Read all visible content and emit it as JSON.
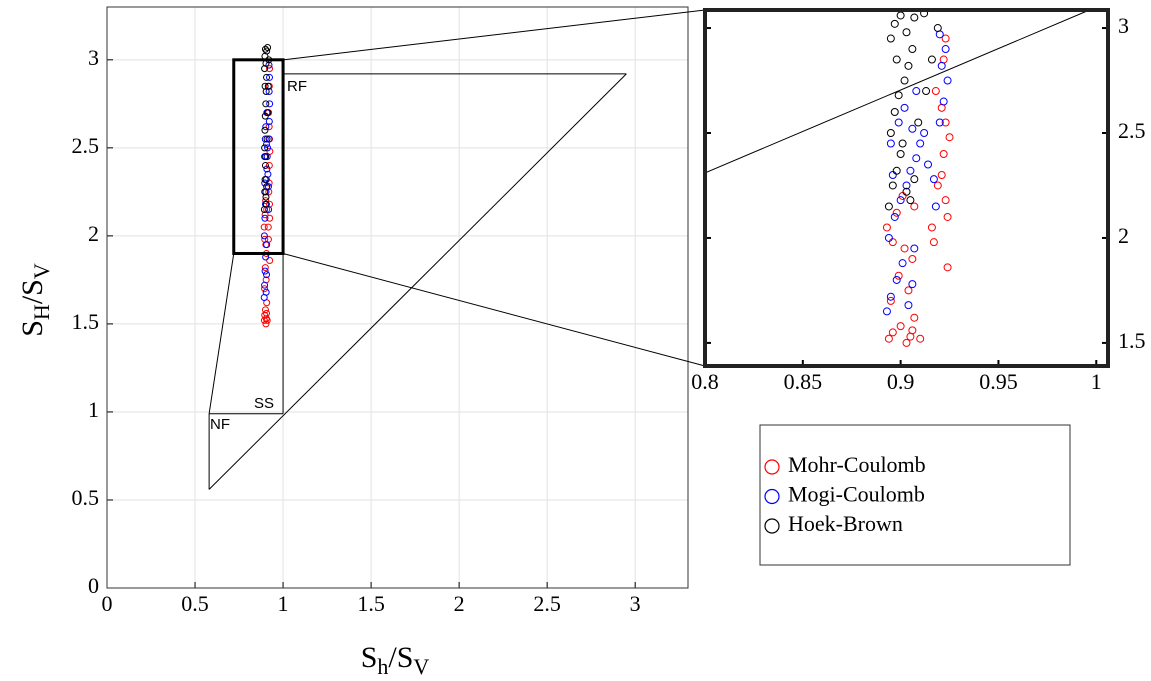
{
  "chart_data": {
    "type": "scatter",
    "xlabel": [
      "S",
      "h",
      "/S",
      "V"
    ],
    "ylabel": [
      "S",
      "H",
      "/S",
      "V"
    ],
    "xlim": [
      0,
      3.3
    ],
    "ylim": [
      0,
      3.3
    ],
    "xticks": [
      0,
      0.5,
      1,
      1.5,
      2,
      2.5,
      3
    ],
    "yticks": [
      0,
      0.5,
      1,
      1.5,
      2,
      2.5,
      3
    ],
    "grid": true,
    "annotations": [
      "RF",
      "SS",
      "NF"
    ],
    "boundaries": [
      {
        "x": [
          0.58,
          0.58
        ],
        "y": [
          0.56,
          0.99
        ]
      },
      {
        "x": [
          0.58,
          1.0
        ],
        "y": [
          0.99,
          0.99
        ]
      },
      {
        "x": [
          1.0,
          1.0
        ],
        "y": [
          0.99,
          2.92
        ]
      },
      {
        "x": [
          1.0,
          2.95
        ],
        "y": [
          2.92,
          2.92
        ]
      },
      {
        "x": [
          0.58,
          2.95
        ],
        "y": [
          0.56,
          2.92
        ]
      },
      {
        "x": [
          0.58,
          0.72
        ],
        "y": [
          0.99,
          1.9
        ]
      }
    ],
    "zoom_box": {
      "x": [
        0.72,
        1.0
      ],
      "y": [
        1.9,
        3.0
      ]
    },
    "series": [
      {
        "name": "Mohr-Coulomb",
        "color": "#ff0000",
        "x": [
          0.894,
          0.896,
          0.9,
          0.903,
          0.905,
          0.906,
          0.907,
          0.91,
          0.895,
          0.899,
          0.902,
          0.896,
          0.904,
          0.906,
          0.893,
          0.898,
          0.901,
          0.907,
          0.916,
          0.917,
          0.919,
          0.921,
          0.923,
          0.924,
          0.922,
          0.925,
          0.923,
          0.921,
          0.918,
          0.922,
          0.924,
          0.923
        ],
        "values": [
          1.52,
          1.55,
          1.58,
          1.5,
          1.53,
          1.56,
          1.62,
          1.52,
          1.7,
          1.82,
          1.95,
          1.98,
          1.75,
          1.9,
          2.05,
          2.12,
          2.2,
          2.15,
          2.05,
          1.98,
          2.25,
          2.3,
          2.18,
          2.1,
          2.4,
          2.48,
          2.55,
          2.62,
          2.7,
          2.85,
          1.86,
          2.95
        ]
      },
      {
        "name": "Mogi-Coulomb",
        "color": "#0000ff",
        "x": [
          0.893,
          0.895,
          0.898,
          0.901,
          0.904,
          0.906,
          0.907,
          0.894,
          0.897,
          0.9,
          0.903,
          0.905,
          0.908,
          0.895,
          0.899,
          0.902,
          0.906,
          0.91,
          0.914,
          0.917,
          0.918,
          0.92,
          0.922,
          0.924,
          0.921,
          0.923,
          0.92,
          0.908,
          0.896,
          0.912
        ],
        "values": [
          1.65,
          1.72,
          1.8,
          1.88,
          1.68,
          1.78,
          1.95,
          2.0,
          2.1,
          2.18,
          2.25,
          2.32,
          2.38,
          2.45,
          2.55,
          2.62,
          2.52,
          2.45,
          2.35,
          2.28,
          2.15,
          2.55,
          2.65,
          2.75,
          2.82,
          2.9,
          2.97,
          2.7,
          2.3,
          2.5
        ]
      },
      {
        "name": "Hoek-Brown",
        "color": "#000000",
        "x": [
          0.894,
          0.896,
          0.898,
          0.9,
          0.903,
          0.905,
          0.907,
          0.895,
          0.897,
          0.899,
          0.902,
          0.904,
          0.906,
          0.895,
          0.897,
          0.9,
          0.903,
          0.907,
          0.912,
          0.916,
          0.913,
          0.919,
          0.909,
          0.901,
          0.898
        ],
        "values": [
          2.15,
          2.25,
          2.32,
          2.4,
          2.22,
          2.18,
          2.28,
          2.5,
          2.6,
          2.68,
          2.75,
          2.82,
          2.9,
          2.95,
          3.02,
          3.06,
          2.98,
          3.05,
          3.07,
          2.85,
          2.7,
          3.0,
          2.55,
          2.45,
          2.85
        ]
      }
    ],
    "inset": {
      "xlim": [
        0.8,
        1.006
      ],
      "ylim": [
        1.39,
        3.086
      ],
      "xticks": [
        0.8,
        0.85,
        0.9,
        0.95,
        1
      ],
      "yticks": [
        1.5,
        2,
        2.5,
        3
      ],
      "lines": [
        {
          "x": [
            0.8,
            0.995
          ],
          "y": [
            2.31,
            3.08
          ]
        }
      ]
    }
  }
}
